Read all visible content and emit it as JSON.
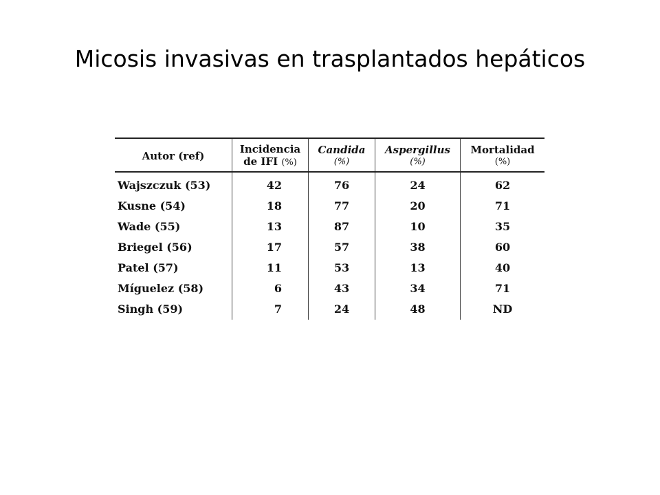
{
  "title": "Micosis invasivas en trasplantados hepáticos",
  "table": {
    "headers": [
      {
        "line1": "Autor (ref)",
        "line2": "",
        "unit": ""
      },
      {
        "line1": "Incidencia",
        "line2": "de IFI",
        "unit": "(%)"
      },
      {
        "line1": "Candida",
        "line2": "",
        "unit": "(%)"
      },
      {
        "line1": "Aspergillus",
        "line2": "",
        "unit": "(%)"
      },
      {
        "line1": "Mortalidad",
        "line2": "",
        "unit": "(%)"
      }
    ],
    "rows": [
      {
        "autor": "Wajszczuk (53)",
        "incidencia": "42",
        "candida": "76",
        "aspergillus": "24",
        "mortalidad": "62"
      },
      {
        "autor": "Kusne (54)",
        "incidencia": "18",
        "candida": "77",
        "aspergillus": "20",
        "mortalidad": "71"
      },
      {
        "autor": "Wade (55)",
        "incidencia": "13",
        "candida": "87",
        "aspergillus": "10",
        "mortalidad": "35"
      },
      {
        "autor": "Briegel (56)",
        "incidencia": "17",
        "candida": "57",
        "aspergillus": "38",
        "mortalidad": "60"
      },
      {
        "autor": "Patel (57)",
        "incidencia": "11",
        "candida": "53",
        "aspergillus": "13",
        "mortalidad": "40"
      },
      {
        "autor": "Míguelez (58)",
        "incidencia": "6",
        "candida": "43",
        "aspergillus": "34",
        "mortalidad": "71"
      },
      {
        "autor": "Singh (59)",
        "incidencia": "7",
        "candida": "24",
        "aspergillus": "48",
        "mortalidad": "ND"
      }
    ]
  }
}
